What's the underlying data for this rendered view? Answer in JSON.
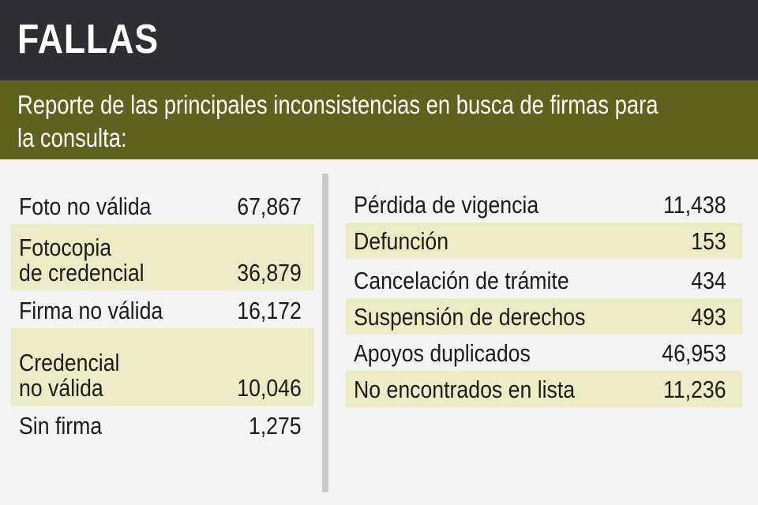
{
  "title": "FALLAS",
  "subtitle": "Reporte de las principales inconsistencias en busca de firmas para\nla consulta:",
  "left_items": [
    {
      "label": "Foto no válida",
      "value": "67,867"
    },
    {
      "label": "Fotocopia\nde credencial",
      "value": "36,879"
    },
    {
      "label": "Firma no válida",
      "value": "16,172"
    },
    {
      "label": "Credencial\nno válida",
      "value": "10,046"
    },
    {
      "label": "Sin firma",
      "value": "1,275"
    }
  ],
  "right_items": [
    {
      "label": "Pérdida de vigencia",
      "value": "11,438"
    },
    {
      "label": "Defunción",
      "value": "153"
    },
    {
      "label": "Cancelación de trámite",
      "value": "434"
    },
    {
      "label": "Suspensión de derechos",
      "value": "493"
    },
    {
      "label": "Apoyos duplicados",
      "value": "46,953"
    },
    {
      "label": "No encontrados en lista",
      "value": "11,236"
    }
  ],
  "colors": {
    "header_bg": "#2e2f33",
    "subheader_bg": "#61611f",
    "row_shade": "#ecebc5",
    "page_bg": "#f4f4f2"
  }
}
